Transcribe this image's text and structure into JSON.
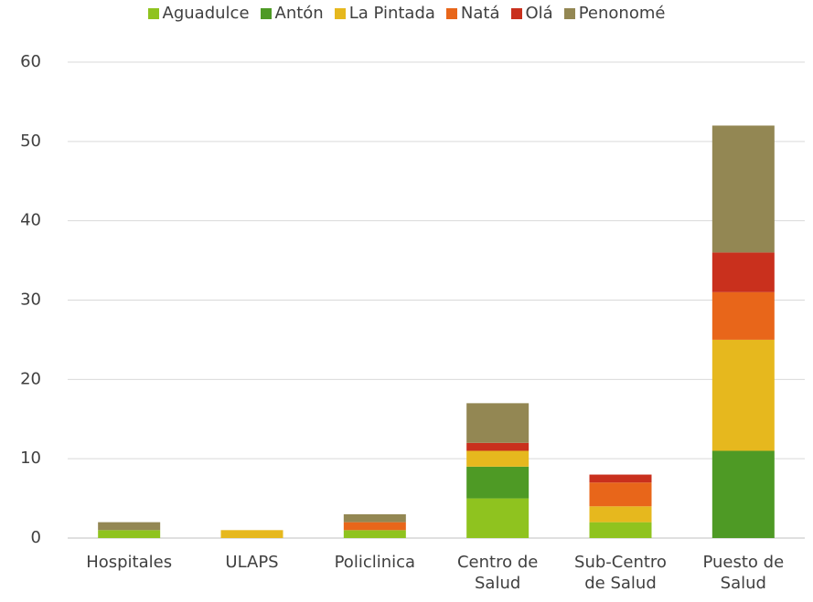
{
  "chart_data": {
    "type": "stacked_bar",
    "categories": [
      "Hospitales",
      "ULAPS",
      "Policlinica",
      "Centro de Salud",
      "Sub-Centro de Salud",
      "Puesto de Salud"
    ],
    "series": [
      {
        "name": "Aguadulce",
        "color": "#8fc31f",
        "values": [
          1,
          0,
          1,
          5,
          2,
          0
        ]
      },
      {
        "name": "Antón",
        "color": "#4e9a25",
        "values": [
          0,
          0,
          0,
          4,
          0,
          11
        ]
      },
      {
        "name": "La Pintada",
        "color": "#e6b81e",
        "values": [
          0,
          1,
          0,
          2,
          2,
          14
        ]
      },
      {
        "name": "Natá",
        "color": "#e8661a",
        "values": [
          0,
          0,
          1,
          0,
          3,
          6
        ]
      },
      {
        "name": "Olá",
        "color": "#c9301d",
        "values": [
          0,
          0,
          0,
          1,
          1,
          5
        ]
      },
      {
        "name": "Penonomé",
        "color": "#938753",
        "values": [
          1,
          0,
          1,
          5,
          0,
          16
        ]
      }
    ],
    "ylim": [
      0,
      60
    ],
    "yticks": [
      0,
      10,
      20,
      30,
      40,
      50,
      60
    ],
    "grid": true,
    "legend": "top"
  }
}
